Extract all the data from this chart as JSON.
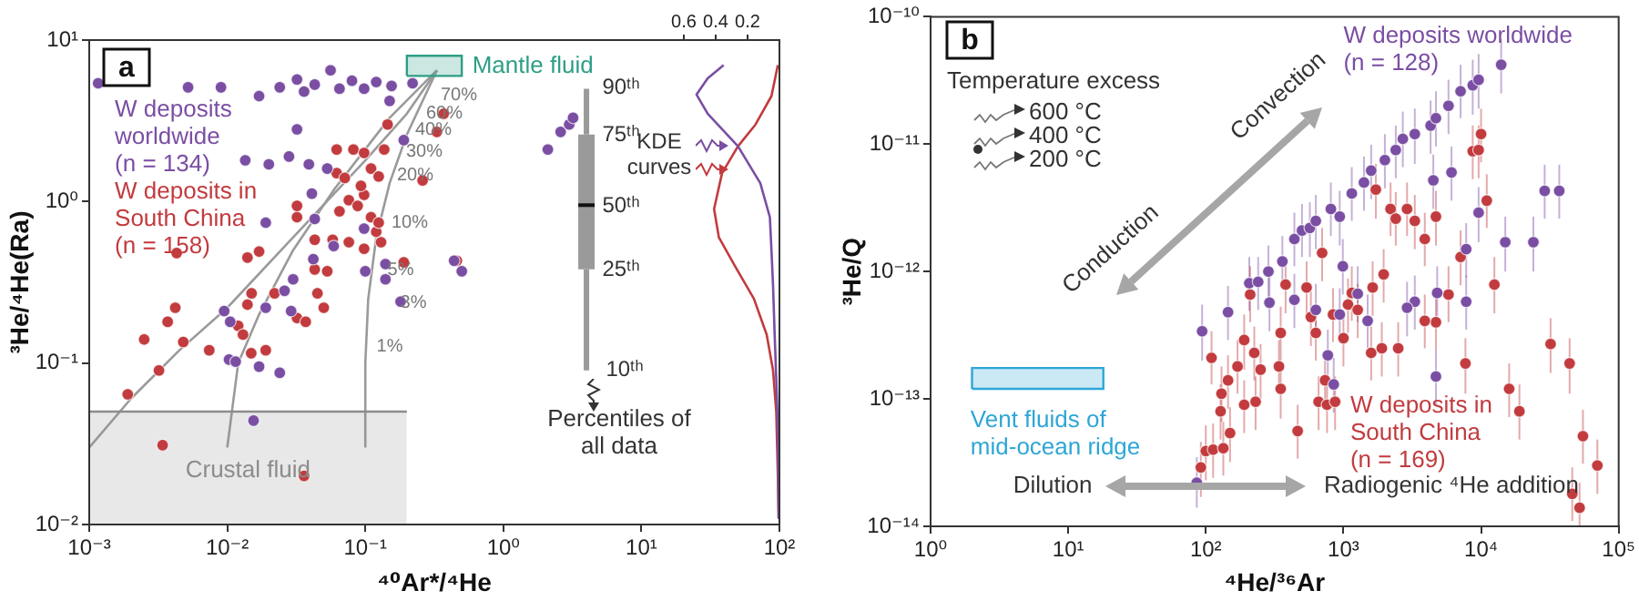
{
  "chart_data": [
    {
      "type": "scatter",
      "xlabel": "⁴⁰Ar*/⁴He",
      "ylabel": "³He/⁴He(Ra)",
      "log": "xy",
      "xlim": [
        0.001,
        100
      ],
      "ylim": [
        0.01,
        10
      ],
      "x2lim": [
        4.33,
        0
      ],
      "x2ticks": [
        0.6,
        0.4,
        0.2
      ],
      "xticks": [
        {
          "value": 0.001,
          "label": "10⁻³"
        },
        {
          "value": 0.01,
          "label": "10⁻²"
        },
        {
          "value": 0.1,
          "label": "10⁻¹"
        },
        {
          "value": 1,
          "label": "10⁰"
        },
        {
          "value": 10,
          "label": "10¹"
        },
        {
          "value": 100,
          "label": "10²"
        }
      ],
      "yticks": [
        {
          "value": 0.01,
          "label": "10⁻²"
        },
        {
          "value": 0.1,
          "label": "10⁻¹"
        },
        {
          "value": 1,
          "label": "10⁰"
        },
        {
          "value": 10,
          "label": "10¹"
        }
      ],
      "grid": false,
      "legend": false,
      "series": [
        {
          "name": "W deposits worldwide (n = 134)",
          "color": "#7a4ea3",
          "x": [
            0.00116,
            0.0052,
            0.009,
            0.017,
            0.024,
            0.032,
            0.036,
            0.043,
            0.056,
            0.065,
            0.08,
            0.098,
            0.12,
            0.155,
            0.22,
            0.032,
            0.0135,
            0.02,
            0.028,
            0.039,
            0.053,
            0.041,
            0.019,
            0.043,
            0.098,
            0.059,
            0.042,
            0.1,
            0.14,
            0.14,
            0.18,
            0.03,
            0.026,
            0.019,
            0.029,
            0.0095,
            0.0105,
            0.0103,
            0.0115,
            0.017,
            0.024,
            0.0155,
            0.19,
            0.15,
            0.44,
            0.5,
            2.1,
            2.6,
            3.0,
            3.2
          ],
          "values": [
            5.4,
            5.1,
            5.1,
            4.5,
            5.1,
            5.7,
            4.8,
            5.3,
            6.5,
            5.0,
            5.6,
            5.0,
            5.5,
            5.2,
            5.4,
            2.8,
            1.8,
            1.7,
            1.9,
            1.7,
            1.6,
            1.12,
            0.74,
            0.78,
            0.68,
            0.53,
            0.44,
            0.37,
            0.41,
            0.33,
            0.24,
            0.33,
            0.28,
            0.22,
            0.21,
            0.21,
            0.18,
            0.105,
            0.102,
            0.095,
            0.087,
            0.044,
            2.4,
            4.2,
            0.43,
            0.37,
            2.1,
            2.7,
            3.0,
            3.3
          ]
        },
        {
          "name": "W deposits in South China (n = 158)",
          "color": "#c23b3e",
          "x": [
            0.0034,
            0.036,
            0.0019,
            0.0032,
            0.0025,
            0.0037,
            0.0042,
            0.0048,
            0.0074,
            0.0043,
            0.014,
            0.017,
            0.015,
            0.014,
            0.012,
            0.013,
            0.0149,
            0.019,
            0.022,
            0.032,
            0.037,
            0.045,
            0.05,
            0.043,
            0.053,
            0.032,
            0.032,
            0.043,
            0.058,
            0.076,
            0.098,
            0.13,
            0.12,
            0.065,
            0.076,
            0.088,
            0.098,
            0.11,
            0.125,
            0.062,
            0.071,
            0.093,
            0.11,
            0.125,
            0.082,
            0.062,
            0.098,
            0.137,
            0.145,
            0.37,
            0.33,
            0.26,
            0.19,
            0.46
          ],
          "values": [
            0.031,
            0.02,
            0.064,
            0.09,
            0.14,
            0.18,
            0.22,
            0.135,
            0.12,
            0.48,
            0.45,
            0.49,
            0.27,
            0.23,
            0.17,
            0.15,
            0.115,
            0.12,
            0.27,
            0.19,
            0.18,
            0.27,
            0.22,
            0.38,
            0.37,
            0.8,
            0.94,
            0.58,
            0.58,
            0.56,
            0.51,
            0.56,
            0.65,
            0.87,
            1.02,
            0.94,
            1.1,
            0.8,
            0.74,
            1.5,
            1.4,
            1.25,
            1.6,
            1.43,
            2.1,
            2.1,
            2.0,
            2.1,
            3.0,
            3.5,
            2.7,
            1.35,
            0.42,
            0.43
          ]
        },
        {
          "name": "Crustal fluid",
          "type": "area",
          "color": "#8c8c8c",
          "x": [
            0.001,
            0.2
          ],
          "values": [
            0.05,
            0.05
          ]
        },
        {
          "name": "Mantle fluid",
          "type": "area",
          "color": "#2e9e86",
          "x": [
            0.2,
            0.5,
            0.5,
            0.2,
            0.2
          ],
          "values": [
            6,
            6,
            8,
            8,
            6
          ]
        },
        {
          "type": "line",
          "color": "#9a9a9a",
          "x": [
            0.001,
            0.002,
            0.0045,
            0.01,
            0.03,
            0.1,
            0.2,
            0.33
          ],
          "values": [
            0.03,
            0.06,
            0.12,
            0.22,
            0.6,
            1.8,
            3.5,
            6.5
          ]
        },
        {
          "type": "line",
          "color": "#9a9a9a",
          "x": [
            0.01,
            0.012,
            0.017,
            0.03,
            0.06,
            0.15,
            0.33
          ],
          "values": [
            0.03,
            0.1,
            0.2,
            0.5,
            1.2,
            3.3,
            6.5
          ]
        },
        {
          "type": "line",
          "color": "#9a9a9a",
          "x": [
            0.1,
            0.1,
            0.105,
            0.12,
            0.15,
            0.2,
            0.33
          ],
          "values": [
            0.03,
            0.1,
            0.25,
            0.6,
            1.3,
            2.6,
            6.5
          ]
        },
        {
          "type": "box",
          "color": "#9a9a9a",
          "x": [
            4
          ],
          "boxes": [
            {
              "low": 0.09,
              "q1": 0.38,
              "median": 0.95,
              "q3": 2.6,
              "high": 5
            }
          ]
        },
        {
          "type": "line",
          "axis": "x2",
          "color": "#7a4ea3",
          "x": [
            0.35,
            0.45,
            0.52,
            0.45,
            0.26,
            0.12,
            0.06,
            0.05,
            0.04,
            0.03,
            0.02,
            0.01,
            0.005
          ],
          "values": [
            7,
            5.8,
            4.6,
            3.5,
            2.2,
            1.3,
            0.8,
            0.5,
            0.3,
            0.15,
            0.08,
            0.04,
            0.011
          ]
        },
        {
          "type": "line",
          "axis": "x2",
          "color": "#c23b3e",
          "x": [
            0.01,
            0.05,
            0.15,
            0.26,
            0.36,
            0.41,
            0.38,
            0.28,
            0.16,
            0.08,
            0.04,
            0.02,
            0.01,
            0.005
          ],
          "values": [
            7,
            4.5,
            3,
            2.2,
            1.5,
            0.9,
            0.6,
            0.4,
            0.25,
            0.15,
            0.09,
            0.05,
            0.02,
            0.011
          ]
        }
      ],
      "annotations": [
        "a",
        "1%",
        "3%",
        "5%",
        "10%",
        "20%",
        "30%",
        "40%",
        "60%",
        "70%",
        "90ᵗʰ",
        "75ᵗʰ",
        "50ᵗʰ",
        "25ᵗʰ",
        "10ᵗʰ",
        "KDE curves",
        "Percentiles of all data"
      ]
    },
    {
      "type": "scatter",
      "xlabel": "⁴He/³⁶Ar",
      "ylabel": "³He/Q",
      "log": "xy",
      "xlim": [
        1,
        100000
      ],
      "ylim": [
        1e-14,
        1e-10
      ],
      "xticks": [
        {
          "value": 1,
          "label": "10⁰"
        },
        {
          "value": 10,
          "label": "10¹"
        },
        {
          "value": 100,
          "label": "10²"
        },
        {
          "value": 1000,
          "label": "10³"
        },
        {
          "value": 10000,
          "label": "10⁴"
        },
        {
          "value": 100000,
          "label": "10⁵"
        }
      ],
      "yticks": [
        {
          "value": 1e-14,
          "label": "10⁻¹⁴"
        },
        {
          "value": 1e-13,
          "label": "10⁻¹³"
        },
        {
          "value": 1e-12,
          "label": "10⁻¹²"
        },
        {
          "value": 1e-11,
          "label": "10⁻¹¹"
        },
        {
          "value": 1e-10,
          "label": "10⁻¹⁰"
        }
      ],
      "grid": false,
      "legend": false,
      "series": [
        {
          "name": "W deposits worldwide (n = 128)",
          "color": "#7a4ea3",
          "x": [
            86,
            94,
            145,
            207,
            240,
            285,
            290,
            360,
            440,
            500,
            570,
            630,
            810,
            940,
            1150,
            1410,
            1590,
            2000,
            2400,
            2700,
            3300,
            4300,
            4700,
            5800,
            7100,
            8700,
            9600,
            14000,
            29000,
            37000,
            24000,
            15000,
            9600,
            6100,
            4500,
            7800,
            4800,
            7800,
            3300,
            2900,
            4700,
            850,
            940,
            1500,
            1270,
            990,
            440,
            630,
            770
          ],
          "values": [
            2.2e-14,
            3.4e-13,
            4.8e-13,
            8.1e-13,
            8.3e-13,
            1e-12,
            5.7e-13,
            1.2e-12,
            1.8e-12,
            2.1e-12,
            2.2e-12,
            2.5e-12,
            3.1e-12,
            2.7e-12,
            4.1e-12,
            5e-12,
            6.2e-12,
            7.5e-12,
            9e-12,
            1.1e-11,
            1.2e-11,
            1.4e-11,
            1.6e-11,
            2e-11,
            2.6e-11,
            2.9e-11,
            3.2e-11,
            4.2e-11,
            4.3e-12,
            4.3e-12,
            1.7e-12,
            1.7e-12,
            2.9e-12,
            6e-12,
            5.2e-12,
            1.5e-12,
            6.8e-13,
            5.8e-13,
            5.8e-13,
            5.2e-13,
            1.5e-13,
            1.3e-13,
            4.6e-13,
            4.1e-13,
            6.7e-13,
            1.1e-12,
            6e-13,
            5e-13,
            2.2e-13
          ],
          "errors": [
            [
              1.4e-14,
              3.5e-14
            ],
            [
              2e-13,
              5.5e-13
            ],
            [
              2.9e-13,
              7.7e-13
            ],
            [
              4.9e-13,
              1.3e-12
            ],
            [
              5e-13,
              1.3e-12
            ],
            [
              6e-13,
              1.6e-12
            ],
            [
              3.4e-13,
              9.1e-13
            ],
            [
              7.2e-13,
              1.9e-12
            ],
            [
              1.1e-12,
              2.9e-12
            ],
            [
              1.3e-12,
              3.4e-12
            ],
            [
              1.3e-12,
              3.5e-12
            ],
            [
              1.5e-12,
              4e-12
            ],
            [
              1.9e-12,
              5e-12
            ],
            [
              1.6e-12,
              4.3e-12
            ],
            [
              2.5e-12,
              6.6e-12
            ],
            [
              3e-12,
              8e-12
            ],
            [
              3.7e-12,
              9.9e-12
            ],
            [
              4.5e-12,
              1.2e-11
            ],
            [
              5.4e-12,
              1.4e-11
            ],
            [
              6.6e-12,
              1.8e-11
            ],
            [
              7e-12,
              1.9e-11
            ],
            [
              8.4e-12,
              2.2e-11
            ],
            [
              9.6e-12,
              2.6e-11
            ],
            [
              1.2e-11,
              3.2e-11
            ],
            [
              1.6e-11,
              4.2e-11
            ],
            [
              1.7e-11,
              4.6e-11
            ],
            [
              1.9e-11,
              5.1e-11
            ],
            [
              2.5e-11,
              6.7e-11
            ],
            [
              2.6e-12,
              6.9e-12
            ],
            [
              2.6e-12,
              6.9e-12
            ],
            [
              1e-12,
              2.7e-12
            ],
            [
              1e-12,
              2.7e-12
            ],
            [
              1.7e-12,
              4.6e-12
            ],
            [
              3.6e-12,
              9.6e-12
            ],
            [
              3.1e-12,
              8.3e-12
            ],
            [
              9e-13,
              2.4e-12
            ],
            [
              4.1e-13,
              1.1e-12
            ],
            [
              3.5e-13,
              9.3e-13
            ],
            [
              3.5e-13,
              9.3e-13
            ],
            [
              3.1e-13,
              8.3e-13
            ],
            [
              9e-14,
              2.4e-13
            ],
            [
              7.8e-14,
              2.1e-13
            ],
            [
              2.8e-13,
              7.4e-13
            ],
            [
              2.5e-13,
              6.6e-13
            ],
            [
              4e-13,
              1.1e-12
            ],
            [
              6.6e-13,
              1.8e-12
            ],
            [
              3.6e-13,
              9.6e-13
            ],
            [
              3e-13,
              8e-13
            ],
            [
              1.3e-13,
              3.5e-13
            ]
          ]
        },
        {
          "name": "W deposits in South China (n = 169)",
          "color": "#c23b3e",
          "x": [
            92,
            100,
            113,
            134,
            150,
            128,
            130,
            145,
            110,
            170,
            190,
            210,
            225,
            250,
            190,
            230,
            350,
            350,
            340,
            380,
            465,
            540,
            580,
            630,
            700,
            840,
            1080,
            660,
            760,
            870,
            735,
            1000,
            1150,
            1270,
            1630,
            1720,
            1590,
            1960,
            2200,
            2400,
            2900,
            2500,
            3300,
            3900,
            4700,
            4700,
            5800,
            7100,
            7700,
            8700,
            9600,
            10000,
            11000,
            12500,
            16000,
            19000,
            32000,
            44000,
            55000,
            46000,
            52000,
            70000,
            3900,
            1900
          ],
          "values": [
            2.9e-14,
            3.9e-14,
            4e-14,
            4.1e-14,
            5.4e-14,
            8e-14,
            1.1e-13,
            1.4e-13,
            2.1e-13,
            1.8e-13,
            2.9e-13,
            6.6e-13,
            2.3e-13,
            1.7e-13,
            9e-14,
            9.5e-14,
            1.2e-13,
            3.3e-13,
            1.8e-13,
            7.9e-13,
            5.6e-14,
            7.5e-13,
            4.4e-13,
            3.3e-13,
            1.4e-12,
            4.6e-13,
            5.5e-13,
            9.5e-14,
            9e-14,
            9.5e-14,
            1.4e-13,
            3e-13,
            6.8e-13,
            5e-13,
            7.5e-13,
            4.4e-12,
            2.3e-13,
            9.5e-13,
            3.1e-12,
            2.6e-12,
            3.1e-12,
            2.5e-13,
            2.5e-12,
            1.8e-12,
            2.7e-12,
            4e-13,
            6.6e-13,
            1.3e-12,
            1.9e-13,
            8.8e-12,
            9e-12,
            1.2e-11,
            3.6e-12,
            7.9e-13,
            1.2e-13,
            8e-14,
            2.7e-13,
            1.9e-13,
            5.1e-14,
            1.8e-14,
            1.4e-14,
            3e-14,
            4.1e-13,
            2.5e-13
          ],
          "errors": [
            [
              1.7e-14,
              4.6e-14
            ],
            [
              2.3e-14,
              6.2e-14
            ],
            [
              2.4e-14,
              6.4e-14
            ],
            [
              2.5e-14,
              6.6e-14
            ],
            [
              3.2e-14,
              8.6e-14
            ],
            [
              4.8e-14,
              1.3e-13
            ],
            [
              6.6e-14,
              1.8e-13
            ],
            [
              8.4e-14,
              2.2e-13
            ],
            [
              1.3e-13,
              3.4e-13
            ],
            [
              1.1e-13,
              2.9e-13
            ],
            [
              1.7e-13,
              4.6e-13
            ],
            [
              4e-13,
              1.1e-12
            ],
            [
              1.4e-13,
              3.7e-13
            ],
            [
              1e-13,
              2.7e-13
            ],
            [
              5.4e-14,
              1.4e-13
            ],
            [
              5.7e-14,
              1.5e-13
            ],
            [
              7e-14,
              1.9e-13
            ],
            [
              2e-13,
              5.3e-13
            ],
            [
              1.1e-13,
              2.9e-13
            ],
            [
              4.7e-13,
              1.3e-12
            ],
            [
              3.4e-14,
              9e-14
            ],
            [
              4.5e-13,
              1.2e-12
            ],
            [
              2.6e-13,
              7e-13
            ],
            [
              2e-13,
              5.3e-13
            ],
            [
              8.4e-13,
              2.2e-12
            ],
            [
              2.8e-13,
              7.4e-13
            ],
            [
              3.3e-13,
              8.8e-13
            ],
            [
              5.7e-14,
              1.5e-13
            ],
            [
              5.4e-14,
              1.4e-13
            ],
            [
              5.7e-14,
              1.5e-13
            ],
            [
              8.4e-14,
              2.2e-13
            ],
            [
              1.8e-13,
              4.8e-13
            ],
            [
              4.1e-13,
              1.1e-12
            ],
            [
              3e-13,
              8e-13
            ],
            [
              4.5e-13,
              1.2e-12
            ],
            [
              2.6e-12,
              7e-12
            ],
            [
              1.4e-13,
              3.7e-13
            ],
            [
              5.7e-13,
              1.5e-12
            ],
            [
              1.9e-12,
              5e-12
            ],
            [
              1.6e-12,
              4.2e-12
            ],
            [
              1.9e-12,
              5e-12
            ],
            [
              1.5e-13,
              4e-13
            ],
            [
              1.5e-12,
              4e-12
            ],
            [
              1.1e-12,
              2.9e-12
            ],
            [
              1.6e-12,
              4.3e-12
            ],
            [
              2.4e-13,
              6.4e-13
            ],
            [
              4e-13,
              1.1e-12
            ],
            [
              7.8e-13,
              2.1e-12
            ],
            [
              1.1e-13,
              3e-13
            ],
            [
              5.3e-12,
              1.4e-11
            ],
            [
              5.4e-12,
              1.4e-11
            ],
            [
              7.2e-12,
              1.9e-11
            ],
            [
              2.2e-12,
              5.8e-12
            ],
            [
              4.7e-13,
              1.3e-12
            ],
            [
              7.2e-14,
              1.9e-13
            ],
            [
              4.8e-14,
              1.3e-13
            ],
            [
              1.6e-13,
              4.3e-13
            ],
            [
              1.1e-13,
              3e-13
            ],
            [
              3.1e-14,
              8.2e-14
            ],
            [
              1.1e-14,
              2.9e-14
            ],
            [
              1e-14,
              2.2e-14
            ],
            [
              1.8e-14,
              4.8e-14
            ],
            [
              2.5e-13,
              6.6e-13
            ],
            [
              1.5e-13,
              4e-13
            ]
          ]
        },
        {
          "name": "Vent fluids of mid-ocean ridge",
          "type": "area",
          "color": "#2ea6d6",
          "x": [
            2,
            18,
            18,
            2,
            2
          ],
          "values": [
            1.2e-13,
            1.2e-13,
            1.75e-13,
            1.75e-13,
            1.2e-13
          ]
        }
      ],
      "annotations": [
        "b",
        "Temperature excess",
        "600 °C",
        "400 °C",
        "200 °C",
        "Convection",
        "Conduction",
        "Dilution",
        "Radiogenic ⁴He addition"
      ]
    }
  ]
}
